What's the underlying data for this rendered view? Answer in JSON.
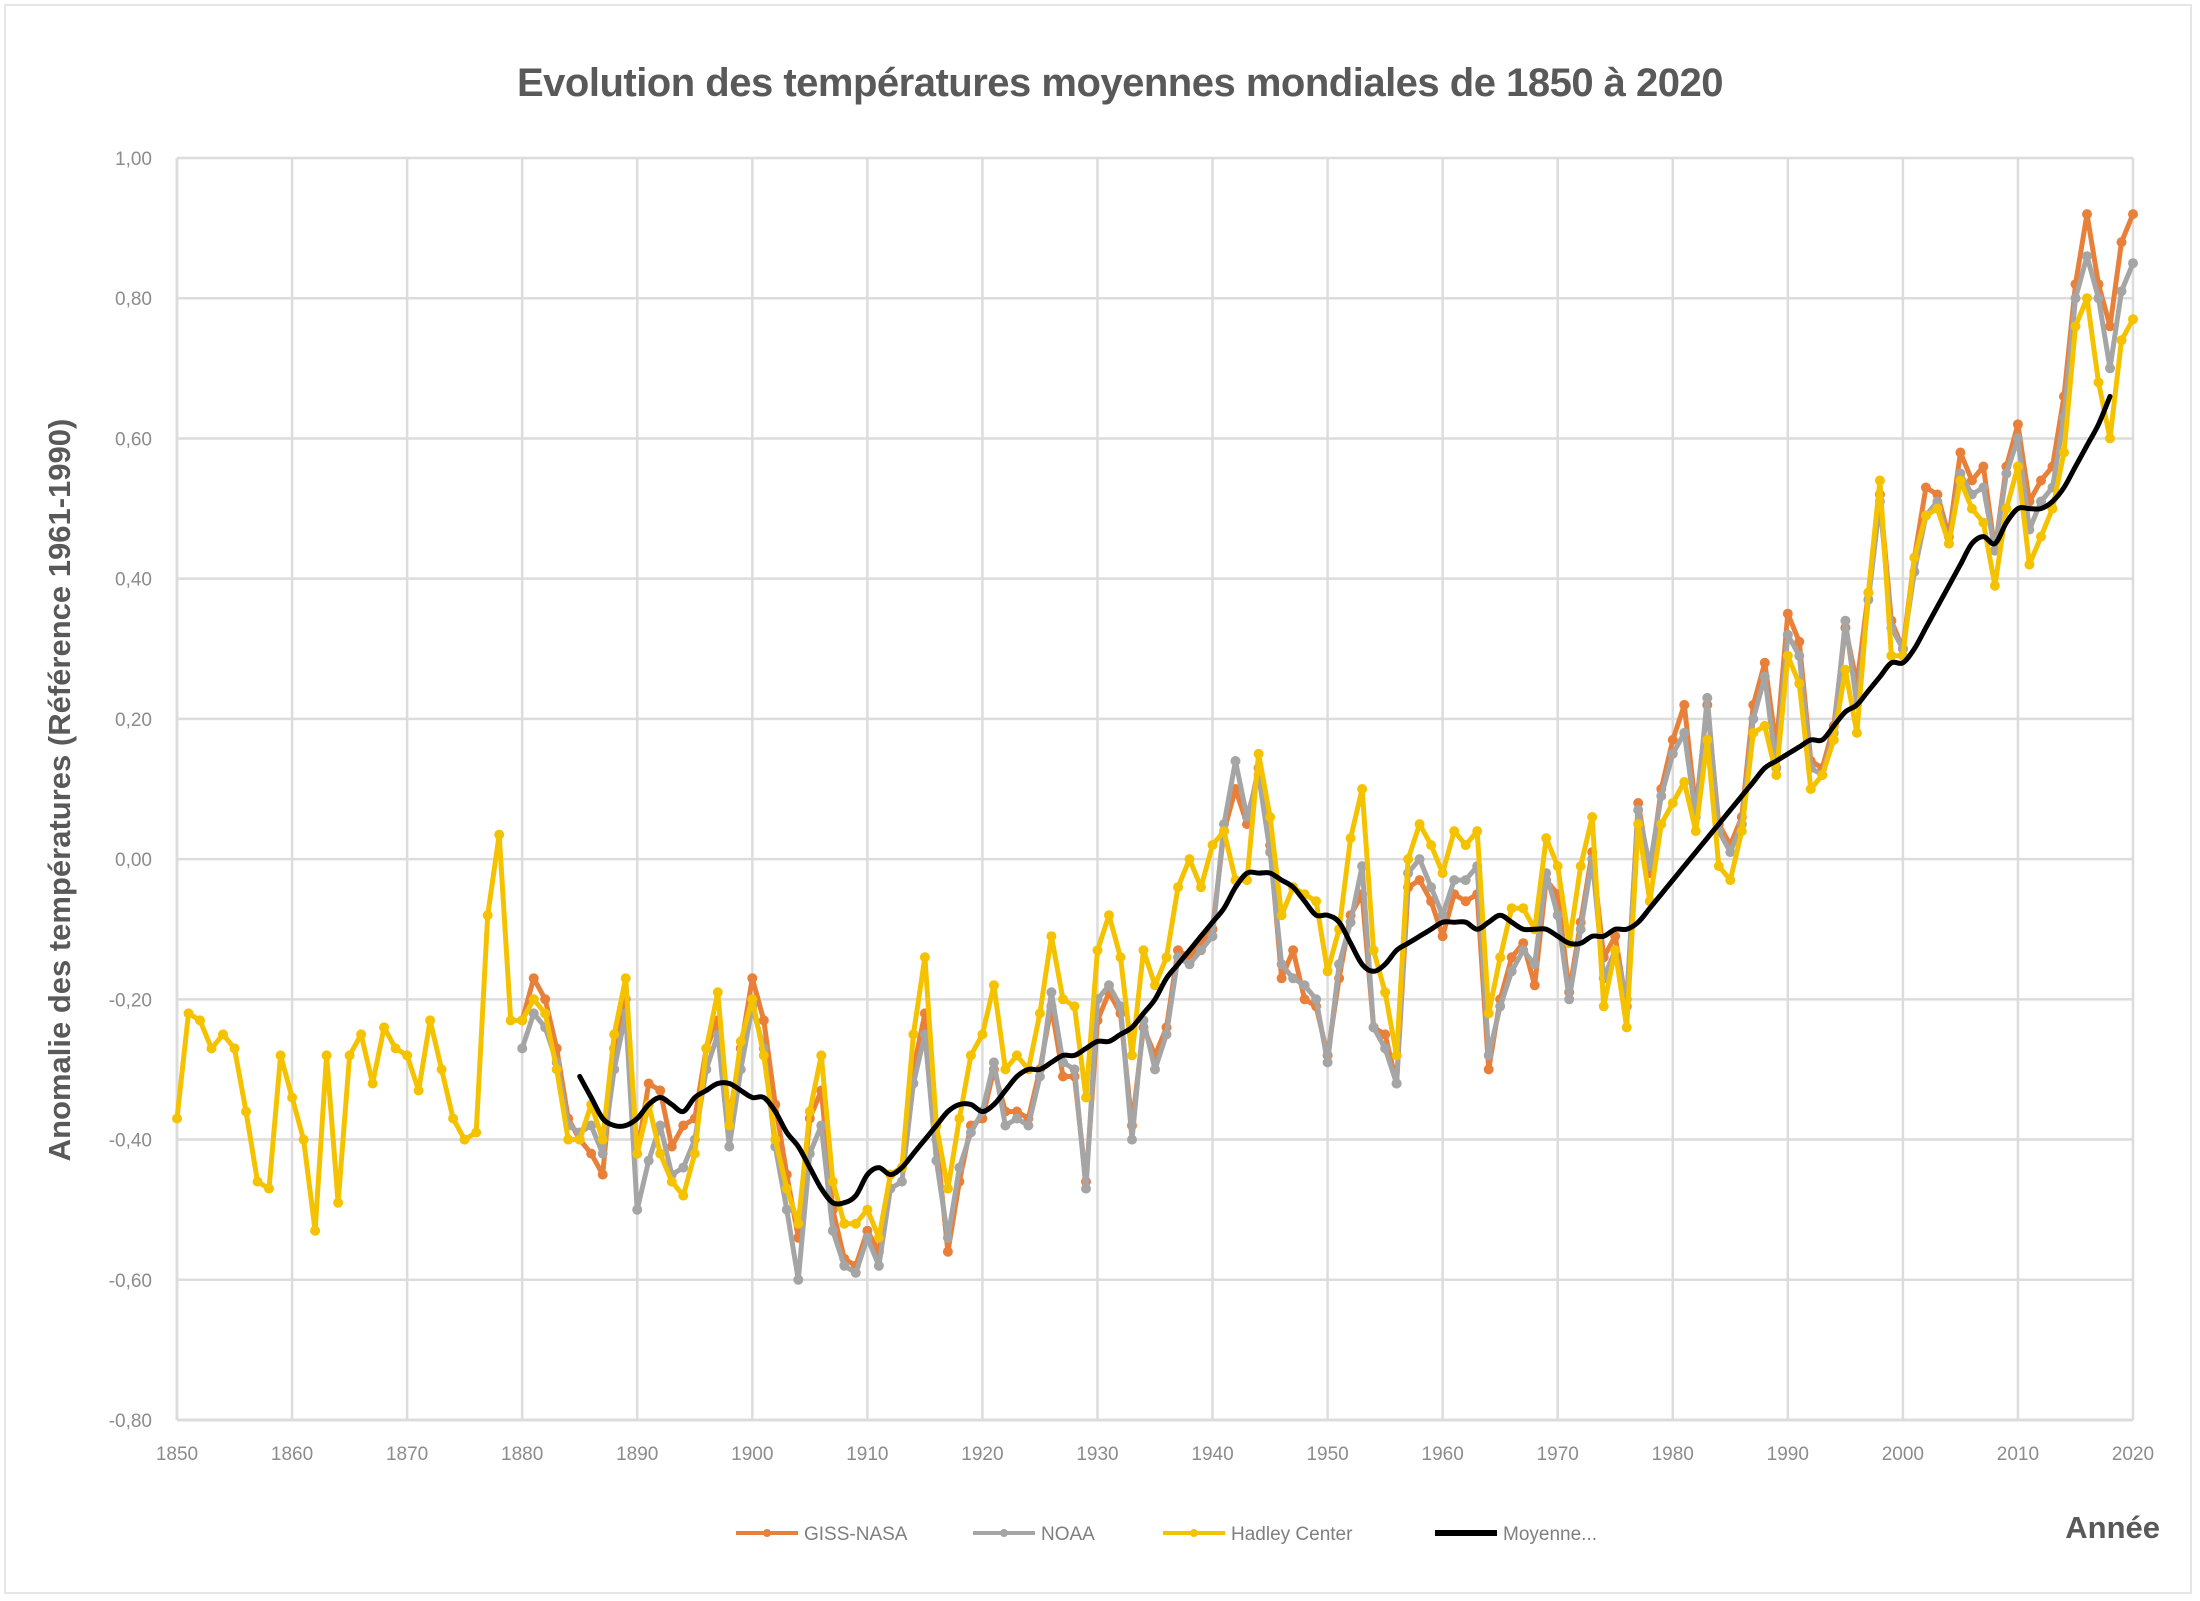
{
  "chart_data": {
    "type": "line",
    "title": "Evolution des températures moyennes mondiales de 1850 à 2020",
    "xlabel": "Année",
    "ylabel": "Anomalie des températures (Référence 1961-1990)",
    "xlim": [
      1850,
      2020
    ],
    "ylim": [
      -0.8,
      1.0
    ],
    "x_ticks": [
      "1850",
      "1860",
      "1870",
      "1880",
      "1890",
      "1900",
      "1910",
      "1920",
      "1930",
      "1940",
      "1950",
      "1960",
      "1970",
      "1980",
      "1990",
      "2000",
      "2010",
      "2020"
    ],
    "y_ticks": [
      "1,00",
      "0,80",
      "0,60",
      "0,40",
      "0,20",
      "0,00",
      "-0,20",
      "-0,40",
      "-0,60",
      "-0,80"
    ],
    "grid": true,
    "legend_position": "bottom",
    "series": [
      {
        "name": "GISS-NASA",
        "color": "#E8803A",
        "markers": true,
        "start_year": 1880,
        "values": [
          -0.23,
          -0.17,
          -0.2,
          -0.27,
          -0.37,
          -0.4,
          -0.42,
          -0.45,
          -0.27,
          -0.2,
          -0.42,
          -0.32,
          -0.33,
          -0.41,
          -0.38,
          -0.37,
          -0.27,
          -0.23,
          -0.37,
          -0.27,
          -0.17,
          -0.23,
          -0.35,
          -0.45,
          -0.54,
          -0.37,
          -0.33,
          -0.5,
          -0.57,
          -0.58,
          -0.53,
          -0.56,
          -0.45,
          -0.44,
          -0.3,
          -0.22,
          -0.4,
          -0.56,
          -0.46,
          -0.38,
          -0.37,
          -0.3,
          -0.36,
          -0.36,
          -0.37,
          -0.3,
          -0.21,
          -0.31,
          -0.31,
          -0.46,
          -0.23,
          -0.19,
          -0.22,
          -0.38,
          -0.24,
          -0.28,
          -0.24,
          -0.13,
          -0.14,
          -0.12,
          -0.1,
          0.04,
          0.1,
          0.05,
          0.13,
          0.02,
          -0.17,
          -0.13,
          -0.2,
          -0.21,
          -0.28,
          -0.17,
          -0.08,
          -0.05,
          -0.24,
          -0.25,
          -0.32,
          -0.04,
          -0.03,
          -0.06,
          -0.11,
          -0.05,
          -0.06,
          -0.05,
          -0.3,
          -0.2,
          -0.14,
          -0.12,
          -0.18,
          -0.03,
          -0.05,
          -0.19,
          -0.09,
          0.01,
          -0.14,
          -0.11,
          -0.21,
          0.08,
          -0.02,
          0.1,
          0.17,
          0.22,
          0.07,
          0.22,
          0.05,
          0.02,
          0.06,
          0.22,
          0.28,
          0.16,
          0.35,
          0.31,
          0.14,
          0.13,
          0.19,
          0.33,
          0.25,
          0.38,
          0.52,
          0.34,
          0.3,
          0.43,
          0.53,
          0.52,
          0.46,
          0.58,
          0.54,
          0.56,
          0.44,
          0.56,
          0.62,
          0.51,
          0.54,
          0.56,
          0.66,
          0.82,
          0.92,
          0.82,
          0.76,
          0.88,
          0.92
        ]
      },
      {
        "name": "NOAA",
        "color": "#A5A5A5",
        "markers": true,
        "start_year": 1880,
        "values": [
          -0.27,
          -0.22,
          -0.24,
          -0.29,
          -0.38,
          -0.39,
          -0.38,
          -0.42,
          -0.3,
          -0.22,
          -0.5,
          -0.43,
          -0.38,
          -0.45,
          -0.44,
          -0.4,
          -0.3,
          -0.25,
          -0.41,
          -0.3,
          -0.21,
          -0.27,
          -0.41,
          -0.5,
          -0.6,
          -0.42,
          -0.38,
          -0.53,
          -0.58,
          -0.59,
          -0.54,
          -0.58,
          -0.47,
          -0.46,
          -0.32,
          -0.25,
          -0.43,
          -0.54,
          -0.44,
          -0.39,
          -0.36,
          -0.29,
          -0.38,
          -0.37,
          -0.38,
          -0.31,
          -0.19,
          -0.29,
          -0.3,
          -0.47,
          -0.2,
          -0.18,
          -0.21,
          -0.4,
          -0.23,
          -0.3,
          -0.25,
          -0.14,
          -0.15,
          -0.13,
          -0.11,
          0.05,
          0.14,
          0.06,
          0.12,
          0.01,
          -0.15,
          -0.17,
          -0.18,
          -0.2,
          -0.29,
          -0.15,
          -0.09,
          -0.01,
          -0.24,
          -0.27,
          -0.32,
          -0.02,
          0.0,
          -0.04,
          -0.08,
          -0.03,
          -0.03,
          -0.01,
          -0.28,
          -0.21,
          -0.16,
          -0.13,
          -0.15,
          -0.02,
          -0.08,
          -0.2,
          -0.1,
          0.0,
          -0.17,
          -0.13,
          -0.2,
          0.07,
          -0.01,
          0.09,
          0.15,
          0.18,
          0.06,
          0.23,
          0.04,
          0.01,
          0.05,
          0.2,
          0.26,
          0.13,
          0.32,
          0.29,
          0.13,
          0.12,
          0.18,
          0.34,
          0.22,
          0.37,
          0.51,
          0.33,
          0.3,
          0.41,
          0.49,
          0.51,
          0.45,
          0.55,
          0.52,
          0.53,
          0.44,
          0.55,
          0.6,
          0.47,
          0.51,
          0.53,
          0.63,
          0.8,
          0.86,
          0.8,
          0.7,
          0.81,
          0.85
        ]
      },
      {
        "name": "Hadley Center",
        "color": "#F5C200",
        "markers": true,
        "start_year": 1850,
        "values": [
          -0.37,
          -0.22,
          -0.23,
          -0.27,
          -0.25,
          -0.27,
          -0.36,
          -0.46,
          -0.47,
          -0.28,
          -0.34,
          -0.4,
          -0.53,
          -0.28,
          -0.49,
          -0.28,
          -0.25,
          -0.32,
          -0.24,
          -0.27,
          -0.28,
          -0.33,
          -0.23,
          -0.3,
          -0.37,
          -0.4,
          -0.39,
          -0.08,
          0.035,
          -0.23,
          -0.23,
          -0.2,
          -0.22,
          -0.3,
          -0.4,
          -0.4,
          -0.35,
          -0.4,
          -0.25,
          -0.17,
          -0.42,
          -0.35,
          -0.42,
          -0.46,
          -0.48,
          -0.42,
          -0.27,
          -0.19,
          -0.38,
          -0.26,
          -0.2,
          -0.28,
          -0.4,
          -0.47,
          -0.52,
          -0.36,
          -0.28,
          -0.46,
          -0.52,
          -0.52,
          -0.5,
          -0.54,
          -0.45,
          -0.44,
          -0.25,
          -0.14,
          -0.38,
          -0.47,
          -0.37,
          -0.28,
          -0.25,
          -0.18,
          -0.3,
          -0.28,
          -0.3,
          -0.22,
          -0.11,
          -0.2,
          -0.21,
          -0.34,
          -0.13,
          -0.08,
          -0.14,
          -0.28,
          -0.13,
          -0.18,
          -0.14,
          -0.04,
          0.0,
          -0.04,
          0.02,
          0.04,
          -0.03,
          -0.03,
          0.15,
          0.06,
          -0.08,
          -0.04,
          -0.05,
          -0.06,
          -0.16,
          -0.1,
          0.03,
          0.1,
          -0.13,
          -0.19,
          -0.28,
          0.0,
          0.05,
          0.02,
          -0.02,
          0.04,
          0.02,
          0.04,
          -0.22,
          -0.14,
          -0.07,
          -0.07,
          -0.1,
          0.03,
          -0.01,
          -0.12,
          -0.01,
          0.06,
          -0.21,
          -0.13,
          -0.24,
          0.05,
          -0.06,
          0.05,
          0.08,
          0.11,
          0.04,
          0.17,
          -0.01,
          -0.03,
          0.04,
          0.18,
          0.19,
          0.12,
          0.29,
          0.25,
          0.1,
          0.12,
          0.17,
          0.27,
          0.18,
          0.38,
          0.54,
          0.29,
          0.29,
          0.43,
          0.49,
          0.5,
          0.45,
          0.54,
          0.5,
          0.48,
          0.39,
          0.5,
          0.56,
          0.42,
          0.46,
          0.5,
          0.58,
          0.76,
          0.8,
          0.68,
          0.6,
          0.74,
          0.77
        ]
      },
      {
        "name": "Moyenne...",
        "color": "#000000",
        "markers": false,
        "start_year": 1885,
        "values": [
          -0.31,
          -0.34,
          -0.37,
          -0.38,
          -0.38,
          -0.37,
          -0.35,
          -0.34,
          -0.35,
          -0.36,
          -0.34,
          -0.33,
          -0.32,
          -0.32,
          -0.33,
          -0.34,
          -0.34,
          -0.36,
          -0.39,
          -0.41,
          -0.44,
          -0.47,
          -0.49,
          -0.49,
          -0.48,
          -0.45,
          -0.44,
          -0.45,
          -0.44,
          -0.42,
          -0.4,
          -0.38,
          -0.36,
          -0.35,
          -0.35,
          -0.36,
          -0.35,
          -0.33,
          -0.31,
          -0.3,
          -0.3,
          -0.29,
          -0.28,
          -0.28,
          -0.27,
          -0.26,
          -0.26,
          -0.25,
          -0.24,
          -0.22,
          -0.2,
          -0.17,
          -0.15,
          -0.13,
          -0.11,
          -0.09,
          -0.07,
          -0.04,
          -0.02,
          -0.02,
          -0.02,
          -0.03,
          -0.04,
          -0.06,
          -0.08,
          -0.08,
          -0.09,
          -0.12,
          -0.15,
          -0.16,
          -0.15,
          -0.13,
          -0.12,
          -0.11,
          -0.1,
          -0.09,
          -0.09,
          -0.09,
          -0.1,
          -0.09,
          -0.08,
          -0.09,
          -0.1,
          -0.1,
          -0.1,
          -0.11,
          -0.12,
          -0.12,
          -0.11,
          -0.11,
          -0.1,
          -0.1,
          -0.09,
          -0.07,
          -0.05,
          -0.03,
          -0.01,
          0.01,
          0.03,
          0.05,
          0.07,
          0.09,
          0.11,
          0.13,
          0.14,
          0.15,
          0.16,
          0.17,
          0.17,
          0.19,
          0.21,
          0.22,
          0.24,
          0.26,
          0.28,
          0.28,
          0.3,
          0.33,
          0.36,
          0.39,
          0.42,
          0.45,
          0.46,
          0.45,
          0.48,
          0.5,
          0.5,
          0.5,
          0.51,
          0.53,
          0.56,
          0.59,
          0.62,
          0.66
        ]
      }
    ]
  }
}
